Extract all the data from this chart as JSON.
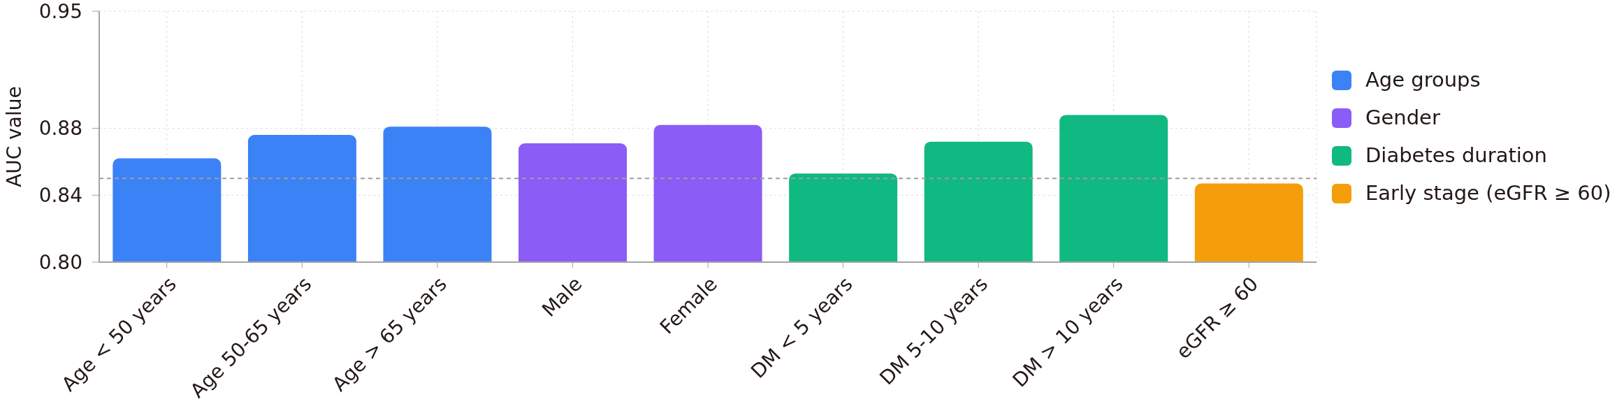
{
  "chart_data": {
    "type": "bar",
    "ylabel": "AUC value",
    "categories": [
      "Age < 50 years",
      "Age 50-65 years",
      "Age > 65 years",
      "Male",
      "Female",
      "DM < 5 years",
      "DM 5-10 years",
      "DM > 10 years",
      "eGFR ≥ 60"
    ],
    "series": [
      {
        "name": "Age groups",
        "color": "#3b82f6",
        "values": [
          0.862,
          0.876,
          0.881,
          null,
          null,
          null,
          null,
          null,
          null
        ]
      },
      {
        "name": "Gender",
        "color": "#8b5cf6",
        "values": [
          null,
          null,
          null,
          0.871,
          0.882,
          null,
          null,
          null,
          null
        ]
      },
      {
        "name": "Diabetes duration",
        "color": "#10b981",
        "values": [
          null,
          null,
          null,
          null,
          null,
          0.853,
          0.872,
          0.888,
          null
        ]
      },
      {
        "name": "Early stage (eGFR ≥ 60)",
        "color": "#f59e0b",
        "values": [
          null,
          null,
          null,
          null,
          null,
          null,
          null,
          null,
          0.847
        ]
      }
    ],
    "ylim": [
      0.8,
      0.95
    ],
    "yticks": [
      {
        "value": 0.8,
        "label": "0.80"
      },
      0.84,
      0.88,
      0.95
    ],
    "ref_lines": [
      {
        "axis": "y",
        "value": 0.85,
        "color": "#9e9e9e",
        "line_style": "dashed"
      }
    ],
    "grid": true,
    "legend": "right"
  }
}
